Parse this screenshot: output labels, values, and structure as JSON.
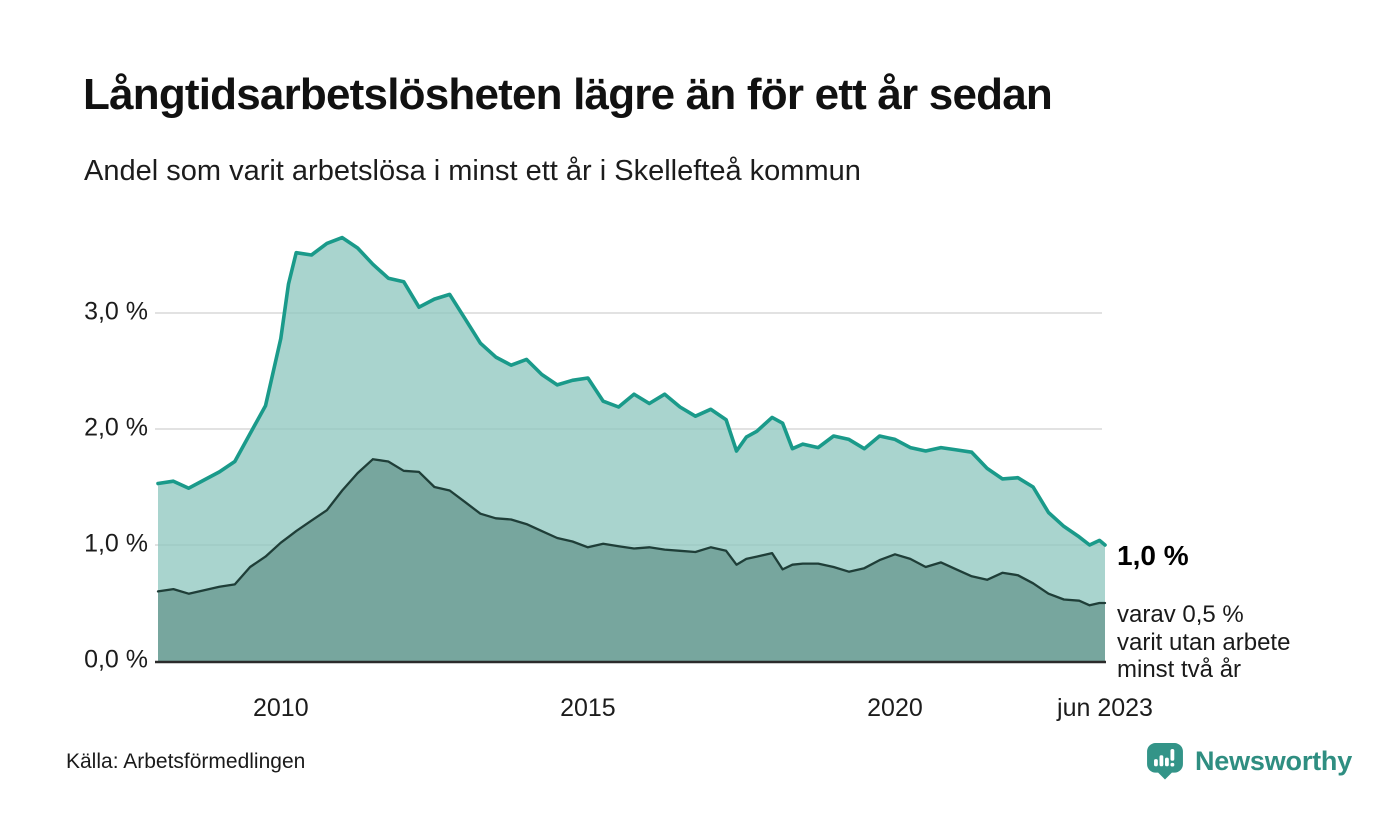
{
  "header": {
    "title": "Långtidsarbetslösheten lägre än för ett år sedan",
    "subtitle": "Andel som varit arbetslösa i minst ett år i Skellefteå kommun"
  },
  "chart_data": {
    "type": "area",
    "title": "Långtidsarbetslösheten lägre än för ett år sedan",
    "subtitle": "Andel som varit arbetslösa i minst ett år i Skellefteå kommun",
    "x_unit": "decimal_year",
    "x_range": [
      2008.0,
      2023.42
    ],
    "ylim": [
      0,
      3.85
    ],
    "grid": "horizontal",
    "legend_position": "none",
    "yticks": [
      {
        "value": 0,
        "label": "0,0 %"
      },
      {
        "value": 1,
        "label": "1,0 %"
      },
      {
        "value": 2,
        "label": "2,0 %"
      },
      {
        "value": 3,
        "label": "3,0 %"
      }
    ],
    "xticks": [
      {
        "value": 2010,
        "label": "2010"
      },
      {
        "value": 2015,
        "label": "2015"
      },
      {
        "value": 2020,
        "label": "2020"
      },
      {
        "value": 2023.42,
        "label": "jun 2023"
      }
    ],
    "x": [
      2008.0,
      2008.25,
      2008.5,
      2008.75,
      2009.0,
      2009.25,
      2009.5,
      2009.75,
      2010.0,
      2010.125,
      2010.25,
      2010.5,
      2010.75,
      2011.0,
      2011.25,
      2011.5,
      2011.75,
      2012.0,
      2012.25,
      2012.5,
      2012.75,
      2013.0,
      2013.25,
      2013.5,
      2013.75,
      2014.0,
      2014.25,
      2014.5,
      2014.75,
      2015.0,
      2015.25,
      2015.5,
      2015.75,
      2016.0,
      2016.25,
      2016.5,
      2016.75,
      2017.0,
      2017.25,
      2017.42,
      2017.58,
      2017.75,
      2018.0,
      2018.17,
      2018.33,
      2018.5,
      2018.75,
      2019.0,
      2019.25,
      2019.5,
      2019.75,
      2020.0,
      2020.25,
      2020.5,
      2020.75,
      2021.0,
      2021.25,
      2021.5,
      2021.75,
      2022.0,
      2022.25,
      2022.5,
      2022.75,
      2023.0,
      2023.17,
      2023.33,
      2023.42
    ],
    "series": [
      {
        "name": "Arbetslösa minst ett år",
        "color": "#1a9a8a",
        "fill": "rgba(140,198,190,0.75)",
        "values": [
          1.53,
          1.55,
          1.49,
          1.56,
          1.63,
          1.72,
          1.96,
          2.2,
          2.78,
          3.25,
          3.52,
          3.5,
          3.6,
          3.65,
          3.56,
          3.42,
          3.3,
          3.27,
          3.05,
          3.12,
          3.16,
          2.95,
          2.74,
          2.62,
          2.55,
          2.6,
          2.47,
          2.38,
          2.42,
          2.44,
          2.24,
          2.19,
          2.3,
          2.22,
          2.3,
          2.19,
          2.11,
          2.17,
          2.08,
          1.81,
          1.93,
          1.98,
          2.1,
          2.05,
          1.83,
          1.87,
          1.84,
          1.94,
          1.91,
          1.83,
          1.94,
          1.91,
          1.84,
          1.81,
          1.84,
          1.82,
          1.8,
          1.66,
          1.57,
          1.58,
          1.5,
          1.28,
          1.16,
          1.07,
          1.0,
          1.04,
          1.0
        ]
      },
      {
        "name": "Varit utan arbete minst två år",
        "color": "#1f3e38",
        "fill": "#77a69e",
        "values": [
          0.6,
          0.62,
          0.58,
          0.61,
          0.64,
          0.66,
          0.81,
          0.9,
          1.02,
          1.07,
          1.12,
          1.21,
          1.3,
          1.47,
          1.62,
          1.74,
          1.72,
          1.64,
          1.63,
          1.5,
          1.47,
          1.37,
          1.27,
          1.23,
          1.22,
          1.18,
          1.12,
          1.06,
          1.03,
          0.98,
          1.01,
          0.99,
          0.97,
          0.98,
          0.96,
          0.95,
          0.94,
          0.98,
          0.95,
          0.83,
          0.88,
          0.9,
          0.93,
          0.79,
          0.83,
          0.84,
          0.84,
          0.81,
          0.77,
          0.8,
          0.87,
          0.92,
          0.88,
          0.81,
          0.85,
          0.79,
          0.73,
          0.7,
          0.76,
          0.74,
          0.67,
          0.58,
          0.53,
          0.52,
          0.48,
          0.5,
          0.5
        ]
      }
    ],
    "end_labels": {
      "primary": "1,0 %",
      "secondary_lines": [
        "varav 0,5 %",
        "varit utan arbete",
        "minst två år"
      ]
    },
    "colors": {
      "gridline": "#e2e2e2",
      "axis": "#2b2b2b"
    }
  },
  "footer": {
    "source": "Källa: Arbetsförmedlingen",
    "brand_name": "Newsworthy",
    "brand_color": "#2f8e81",
    "logo_color": "#339488"
  }
}
